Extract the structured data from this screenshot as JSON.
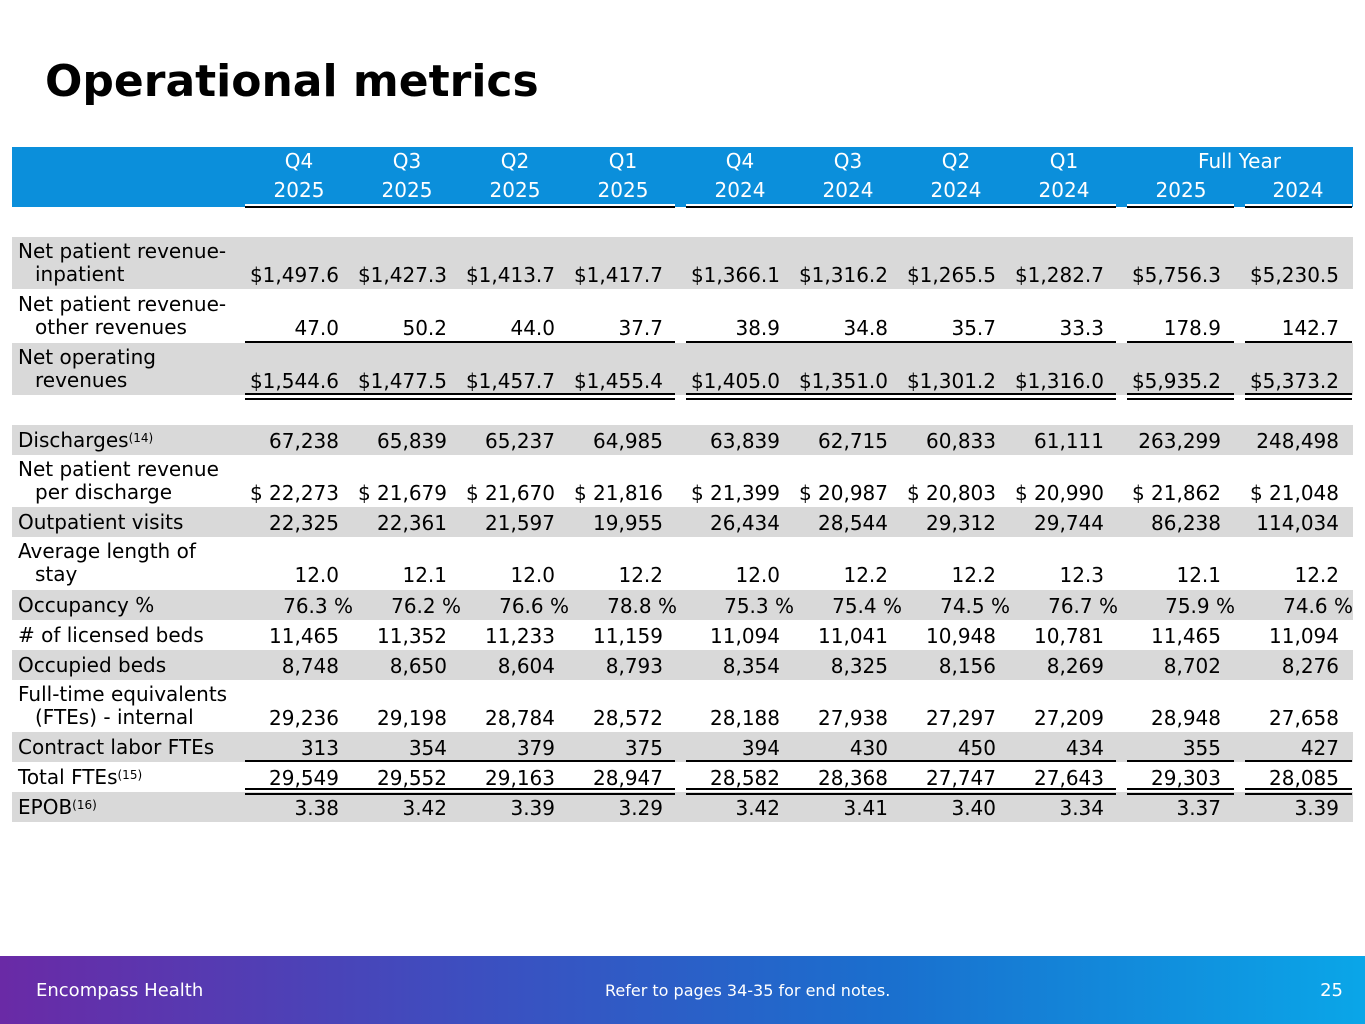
{
  "title": "Operational metrics",
  "columns": [
    {
      "top": "Q4",
      "bottom": "2025"
    },
    {
      "top": "Q3",
      "bottom": "2025"
    },
    {
      "top": "Q2",
      "bottom": "2025"
    },
    {
      "top": "Q1",
      "bottom": "2025"
    },
    {
      "top": "Q4",
      "bottom": "2024"
    },
    {
      "top": "Q3",
      "bottom": "2024"
    },
    {
      "top": "Q2",
      "bottom": "2024"
    },
    {
      "top": "Q1",
      "bottom": "2024"
    },
    {
      "top": "",
      "bottom": "2025"
    },
    {
      "top": "",
      "bottom": "2024"
    }
  ],
  "full_year_label": "Full Year",
  "rows": [
    {
      "label1": "Net patient revenue-",
      "label2": "inpatient",
      "values": [
        "$1,497.6",
        "$1,427.3",
        "$1,413.7",
        "$1,417.7",
        "$1,366.1",
        "$1,316.2",
        "$1,265.5",
        "$1,282.7",
        "$5,756.3",
        "$5,230.5"
      ]
    },
    {
      "label1": "Net patient revenue-",
      "label2": "other revenues",
      "values": [
        "47.0",
        "50.2",
        "44.0",
        "37.7",
        "38.9",
        "34.8",
        "35.7",
        "33.3",
        "178.9",
        "142.7"
      ]
    },
    {
      "label1": "Net operating",
      "label2": "revenues",
      "values": [
        "$1,544.6",
        "$1,477.5",
        "$1,457.7",
        "$1,455.4",
        "$1,405.0",
        "$1,351.0",
        "$1,301.2",
        "$1,316.0",
        "$5,935.2",
        "$5,373.2"
      ]
    },
    {
      "label1": "Discharges",
      "sup": "(14)",
      "values": [
        "67,238",
        "65,839",
        "65,237",
        "64,985",
        "63,839",
        "62,715",
        "60,833",
        "61,111",
        "263,299",
        "248,498"
      ]
    },
    {
      "label1": "Net patient revenue",
      "label2": "per discharge",
      "values": [
        "$ 22,273",
        "$ 21,679",
        "$ 21,670",
        "$ 21,816",
        "$ 21,399",
        "$ 20,987",
        "$ 20,803",
        "$ 20,990",
        "$ 21,862",
        "$ 21,048"
      ]
    },
    {
      "label1": "Outpatient visits",
      "values": [
        "22,325",
        "22,361",
        "21,597",
        "19,955",
        "26,434",
        "28,544",
        "29,312",
        "29,744",
        "86,238",
        "114,034"
      ]
    },
    {
      "label1": "Average length of",
      "label2": "stay",
      "values": [
        "12.0",
        "12.1",
        "12.0",
        "12.2",
        "12.0",
        "12.2",
        "12.2",
        "12.3",
        "12.1",
        "12.2"
      ]
    },
    {
      "label1": "Occupancy %",
      "values": [
        "76.3 %",
        "76.2 %",
        "76.6 %",
        "78.8 %",
        "75.3 %",
        "75.4 %",
        "74.5 %",
        "76.7 %",
        "75.9 %",
        "74.6 %"
      ]
    },
    {
      "label1": "# of licensed beds",
      "values": [
        "11,465",
        "11,352",
        "11,233",
        "11,159",
        "11,094",
        "11,041",
        "10,948",
        "10,781",
        "11,465",
        "11,094"
      ]
    },
    {
      "label1": "Occupied beds",
      "values": [
        "8,748",
        "8,650",
        "8,604",
        "8,793",
        "8,354",
        "8,325",
        "8,156",
        "8,269",
        "8,702",
        "8,276"
      ]
    },
    {
      "label1": "Full-time equivalents",
      "label2": "(FTEs) - internal",
      "values": [
        "29,236",
        "29,198",
        "28,784",
        "28,572",
        "28,188",
        "27,938",
        "27,297",
        "27,209",
        "28,948",
        "27,658"
      ]
    },
    {
      "label1": "Contract labor FTEs",
      "values": [
        "313",
        "354",
        "379",
        "375",
        "394",
        "430",
        "450",
        "434",
        "355",
        "427"
      ]
    },
    {
      "label1": "Total FTEs",
      "sup": "(15)",
      "values": [
        "29,549",
        "29,552",
        "29,163",
        "28,947",
        "28,582",
        "28,368",
        "27,747",
        "27,643",
        "29,303",
        "28,085"
      ]
    },
    {
      "label1": "EPOB",
      "sup": "(16)",
      "values": [
        "3.38",
        "3.42",
        "3.39",
        "3.29",
        "3.42",
        "3.41",
        "3.40",
        "3.34",
        "3.37",
        "3.39"
      ]
    }
  ],
  "footer": {
    "company": "Encompass Health",
    "note": "Refer to pages 34-35 for end notes.",
    "page": "25"
  }
}
